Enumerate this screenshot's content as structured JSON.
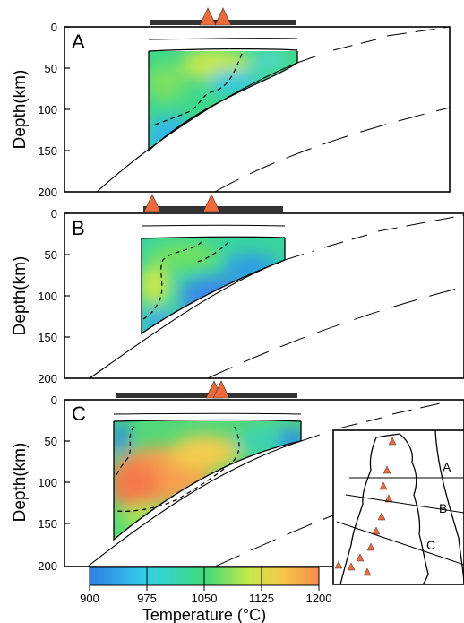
{
  "panels": [
    {
      "label": "A",
      "ylabel": "Depth(km)",
      "ticks": [
        "0",
        "50",
        "100",
        "150",
        "200"
      ]
    },
    {
      "label": "B",
      "ylabel": "Depth(km)",
      "ticks": [
        "0",
        "50",
        "100",
        "150",
        "200"
      ]
    },
    {
      "label": "C",
      "ylabel": "Depth(km)",
      "ticks": [
        "0",
        "50",
        "100",
        "150",
        "200"
      ]
    }
  ],
  "colorbar": {
    "ticks": [
      "900",
      "975",
      "1050",
      "1125",
      "1200"
    ],
    "title": "Temperature (°C)",
    "colors": [
      "#2f7fe6",
      "#33d0e8",
      "#3fda7a",
      "#c9e94a",
      "#f7c64a",
      "#f58a4c"
    ]
  },
  "map": {
    "lines": [
      "A",
      "B",
      "C"
    ]
  },
  "colors": {
    "volcano": "#ee6a3a",
    "bar": "#333333"
  },
  "chart_data": {
    "type": "heatmap",
    "value_range": [
      900,
      1200
    ],
    "depth_range": [
      0,
      200
    ],
    "unit": "°C"
  }
}
